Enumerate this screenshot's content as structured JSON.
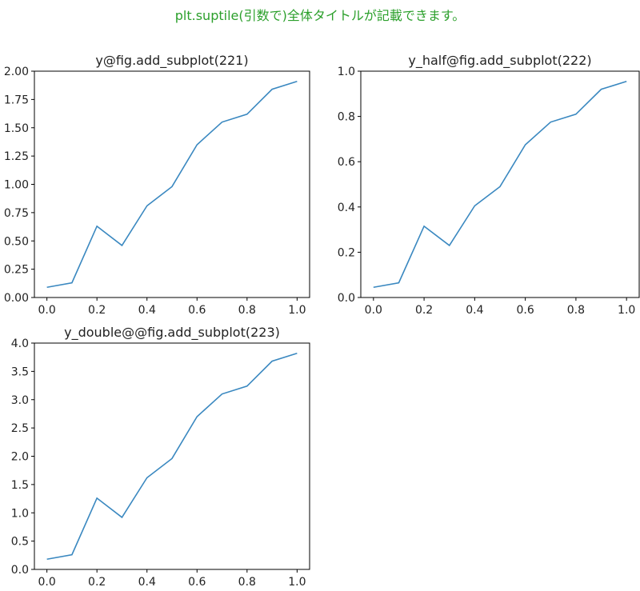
{
  "suptitle": "plt.suptile(引数で)全体タイトルが記載できます。",
  "colors": {
    "suptitle": "#2ca02c",
    "line": "#3a88c0",
    "axes": "#000000"
  },
  "chart_data": [
    {
      "type": "line",
      "title": "y@fig.add_subplot(221)",
      "xlabel": "",
      "ylabel": "",
      "xlim": [
        -0.05,
        1.05
      ],
      "ylim": [
        0.0,
        2.0
      ],
      "xticks": [
        "0.0",
        "0.2",
        "0.4",
        "0.6",
        "0.8",
        "1.0"
      ],
      "yticks": [
        "0.00",
        "0.25",
        "0.50",
        "0.75",
        "1.00",
        "1.25",
        "1.50",
        "1.75",
        "2.00"
      ],
      "grid": false,
      "series": [
        {
          "x": [
            0.0,
            0.1,
            0.2,
            0.3,
            0.4,
            0.5,
            0.6,
            0.7,
            0.8,
            0.9,
            1.0
          ],
          "y": [
            0.09,
            0.13,
            0.63,
            0.46,
            0.81,
            0.98,
            1.35,
            1.55,
            1.62,
            1.84,
            1.91
          ]
        }
      ]
    },
    {
      "type": "line",
      "title": "y_half@fig.add_subplot(222)",
      "xlabel": "",
      "ylabel": "",
      "xlim": [
        -0.05,
        1.05
      ],
      "ylim": [
        0.0,
        1.0
      ],
      "xticks": [
        "0.0",
        "0.2",
        "0.4",
        "0.6",
        "0.8",
        "1.0"
      ],
      "yticks": [
        "0.0",
        "0.2",
        "0.4",
        "0.6",
        "0.8",
        "1.0"
      ],
      "grid": false,
      "series": [
        {
          "x": [
            0.0,
            0.1,
            0.2,
            0.3,
            0.4,
            0.5,
            0.6,
            0.7,
            0.8,
            0.9,
            1.0
          ],
          "y": [
            0.045,
            0.065,
            0.315,
            0.23,
            0.405,
            0.49,
            0.675,
            0.775,
            0.81,
            0.92,
            0.955
          ]
        }
      ]
    },
    {
      "type": "line",
      "title": "y_double@@fig.add_subplot(223)",
      "xlabel": "",
      "ylabel": "",
      "xlim": [
        -0.05,
        1.05
      ],
      "ylim": [
        0.0,
        4.0
      ],
      "xticks": [
        "0.0",
        "0.2",
        "0.4",
        "0.6",
        "0.8",
        "1.0"
      ],
      "yticks": [
        "0.0",
        "0.5",
        "1.0",
        "1.5",
        "2.0",
        "2.5",
        "3.0",
        "3.5",
        "4.0"
      ],
      "grid": false,
      "series": [
        {
          "x": [
            0.0,
            0.1,
            0.2,
            0.3,
            0.4,
            0.5,
            0.6,
            0.7,
            0.8,
            0.9,
            1.0
          ],
          "y": [
            0.18,
            0.26,
            1.26,
            0.92,
            1.62,
            1.96,
            2.7,
            3.1,
            3.24,
            3.68,
            3.82
          ]
        }
      ]
    }
  ]
}
